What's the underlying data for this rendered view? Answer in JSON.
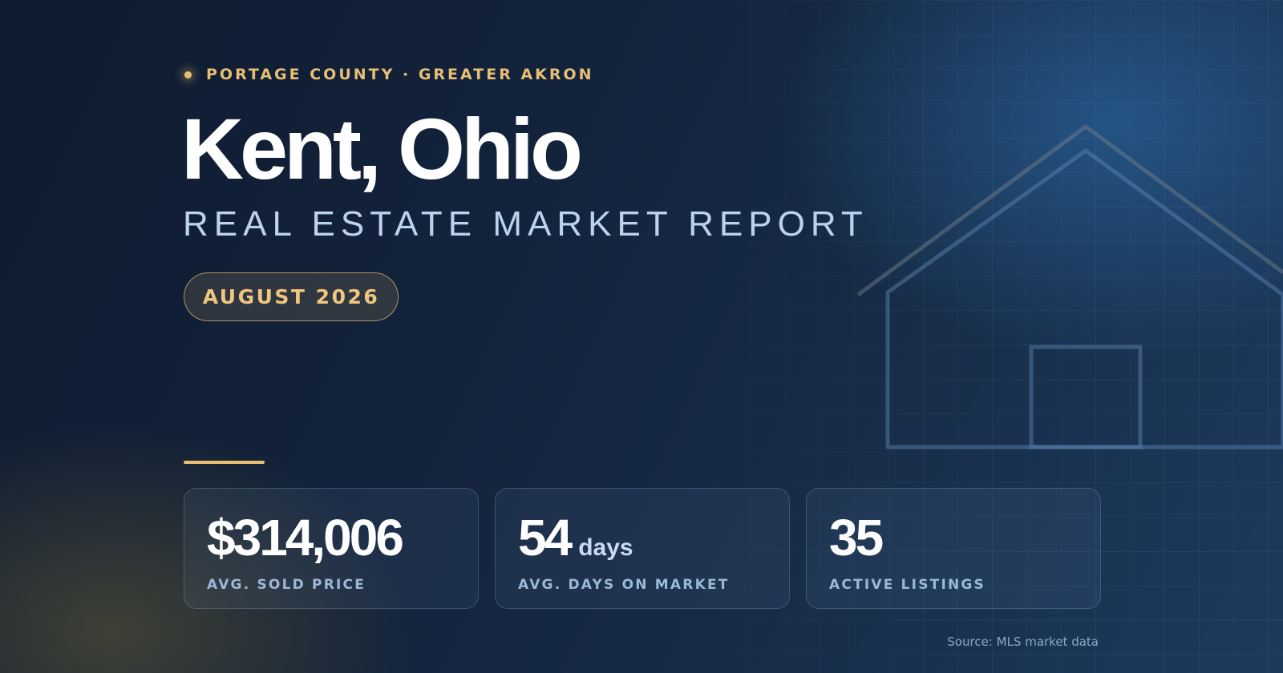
{
  "header": {
    "eyebrow": "PORTAGE COUNTY · GREATER AKRON",
    "title": "Kent, Ohio",
    "subtitle": "REAL ESTATE MARKET REPORT",
    "date_label": "AUGUST 2026"
  },
  "stats": [
    {
      "value": "$314,006",
      "unit": "",
      "label": "AVG. SOLD PRICE"
    },
    {
      "value": "54",
      "unit": "days",
      "label": "AVG. DAYS ON MARKET"
    },
    {
      "value": "35",
      "unit": "",
      "label": "ACTIVE LISTINGS"
    }
  ],
  "footer": {
    "source": "Source: MLS market data"
  },
  "colors": {
    "accent_gold": "#e8be72",
    "background_navy": "#13233c",
    "subtitle_blue": "#bcd3ee"
  },
  "icons": {
    "decorative": "house-outline-icon",
    "eyebrow": "dot-icon"
  }
}
